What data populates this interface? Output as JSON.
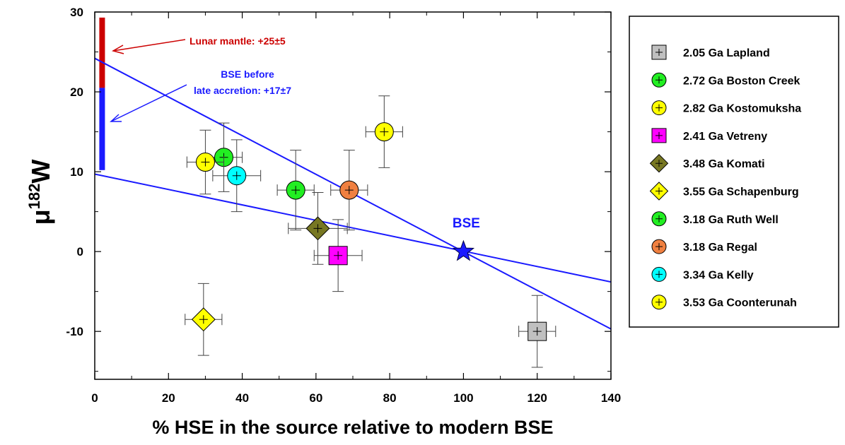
{
  "chart_data": {
    "type": "scatter",
    "xlabel": "% HSE in the source relative to modern BSE",
    "ylabel_main": "μ",
    "ylabel_sup": "182",
    "ylabel_tail": "W",
    "xlim": [
      0,
      140
    ],
    "ylim": [
      -16,
      30
    ],
    "x_ticks": [
      "0",
      "20",
      "40",
      "60",
      "80",
      "100",
      "120",
      "140"
    ],
    "y_ticks": [
      "-10",
      "0",
      "10",
      "20",
      "30"
    ],
    "series": [
      {
        "name": "2.05 Ga Lapland",
        "marker": "square",
        "color": "#c0c0c0",
        "x": 120,
        "y": -10,
        "xerr": 5,
        "yerr": 4.5
      },
      {
        "name": "2.72 Ga Boston Creek",
        "marker": "circle",
        "color": "#22ee22",
        "x": 54.5,
        "y": 7.7,
        "xerr": 5,
        "yerr": 5
      },
      {
        "name": "2.82 Ga Kostomuksha",
        "marker": "circle",
        "color": "#ffff00",
        "x": 78.5,
        "y": 15,
        "xerr": 5,
        "yerr": 4.5
      },
      {
        "name": "2.41 Ga Vetreny",
        "marker": "square",
        "color": "#ff00ff",
        "x": 66,
        "y": -0.5,
        "xerr": 6.5,
        "yerr": 4.5
      },
      {
        "name": "3.48 Ga Komati",
        "marker": "diamond",
        "color": "#777722",
        "x": 60.5,
        "y": 2.9,
        "xerr": 8,
        "yerr": 4.5
      },
      {
        "name": "3.55 Ga Schapenburg",
        "marker": "diamond",
        "color": "#ffff00",
        "x": 29.5,
        "y": -8.5,
        "xerr": 5,
        "yerr": 4.5
      },
      {
        "name": "3.18 Ga Ruth Well",
        "marker": "circle",
        "color": "#22ee22",
        "x": 35,
        "y": 11.8,
        "xerr": 5,
        "yerr": 4.3
      },
      {
        "name": "3.18 Ga Regal",
        "marker": "circle",
        "color": "#f08040",
        "x": 69,
        "y": 7.7,
        "xerr": 5,
        "yerr": 5
      },
      {
        "name": "3.34 Ga Kelly",
        "marker": "circle",
        "color": "#00ffff",
        "x": 38.5,
        "y": 9.5,
        "xerr": 6.5,
        "yerr": 4.5
      },
      {
        "name": "3.53 Ga Coonterunah",
        "marker": "circle",
        "color": "#ffff00",
        "x": 30,
        "y": 11.2,
        "xerr": 5,
        "yerr": 4
      }
    ],
    "bse_point": {
      "label": "BSE",
      "x": 100,
      "y": 0,
      "color": "#1a1aff"
    },
    "lines": [
      {
        "x1": 0,
        "y1": 24.2,
        "x2": 140,
        "y2": -9.7,
        "color": "#1a1aff"
      },
      {
        "x1": 0,
        "y1": 9.7,
        "x2": 140,
        "y2": -3.8,
        "color": "#1a1aff"
      }
    ],
    "bars": [
      {
        "x": 2,
        "y0": 20.5,
        "y1": 29.3,
        "color": "#cc0000"
      },
      {
        "x": 2,
        "y0": 10.2,
        "y1": 20.5,
        "color": "#1a1aff"
      }
    ],
    "annotations": [
      {
        "lines": [
          "Lunar mantle: +25±5"
        ],
        "color": "#cc0000"
      },
      {
        "lines": [
          "BSE before",
          "late accretion: +17±7"
        ],
        "color": "#1a1aff"
      }
    ],
    "grid": false,
    "legend_position": "right"
  }
}
